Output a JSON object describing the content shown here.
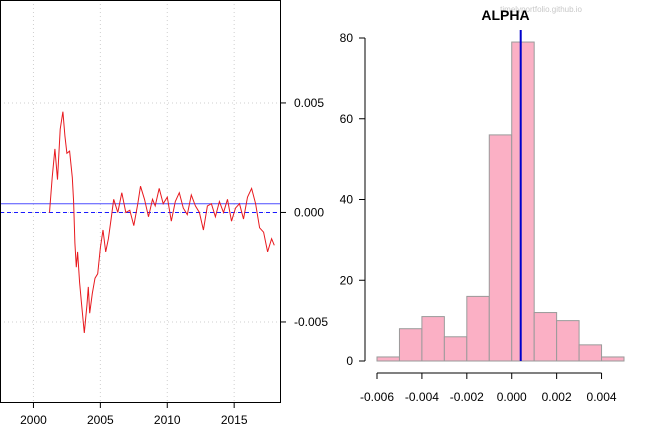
{
  "watermark": "timelyportfolio.github.io",
  "chart_data": [
    {
      "type": "line",
      "title": "",
      "xlabel": "",
      "ylabel": "",
      "xlim": [
        1997.5,
        2018.5
      ],
      "ylim": [
        -0.0087,
        0.0097
      ],
      "x_ticks": [
        2000,
        2005,
        2010,
        2015
      ],
      "x_tick_labels": [
        "2000",
        "2005",
        "2010",
        "2015"
      ],
      "y_ticks": [
        0.005,
        0.0,
        -0.005
      ],
      "y_tick_labels": [
        "0.005",
        "0.000",
        "-0.005"
      ],
      "grid": true,
      "reference_lines": [
        {
          "style": "solid",
          "value": 0.0004,
          "color": "#4d4dff"
        },
        {
          "style": "dashed",
          "value": 0.0,
          "color": "#1a1aff"
        }
      ],
      "series": [
        {
          "color": "#e8191e",
          "x": [
            2001.2,
            2001.4,
            2001.6,
            2001.8,
            2002.0,
            2002.2,
            2002.35,
            2002.5,
            2002.7,
            2002.9,
            2003.0,
            2003.1,
            2003.2,
            2003.3,
            2003.45,
            2003.6,
            2003.8,
            2004.0,
            2004.1,
            2004.2,
            2004.4,
            2004.6,
            2004.8,
            2005.0,
            2005.2,
            2005.4,
            2005.6,
            2005.8,
            2006.0,
            2006.3,
            2006.6,
            2006.9,
            2007.2,
            2007.5,
            2007.8,
            2008.0,
            2008.3,
            2008.6,
            2008.9,
            2009.1,
            2009.4,
            2009.7,
            2010.0,
            2010.3,
            2010.6,
            2010.9,
            2011.2,
            2011.5,
            2011.8,
            2012.1,
            2012.4,
            2012.7,
            2013.0,
            2013.3,
            2013.6,
            2013.9,
            2014.2,
            2014.5,
            2014.8,
            2015.1,
            2015.4,
            2015.7,
            2016.0,
            2016.3,
            2016.6,
            2016.9,
            2017.2,
            2017.5,
            2017.8,
            2018.0
          ],
          "values": [
            0.0,
            0.0016,
            0.0029,
            0.0015,
            0.0038,
            0.0046,
            0.0035,
            0.0027,
            0.0028,
            0.0016,
            0.0005,
            -0.0014,
            -0.0025,
            -0.0018,
            -0.0032,
            -0.0042,
            -0.0055,
            -0.0042,
            -0.0034,
            -0.0046,
            -0.0037,
            -0.003,
            -0.0028,
            -0.0016,
            -0.0008,
            -0.0018,
            -0.0012,
            -0.0003,
            0.0006,
            0.0,
            0.0009,
            0.0,
            0.0001,
            -0.0006,
            0.0004,
            0.0012,
            0.0006,
            -0.0002,
            0.0006,
            0.0003,
            0.0011,
            0.0004,
            0.0007,
            -0.0004,
            0.0005,
            0.0009,
            0.0002,
            -0.0001,
            0.0008,
            0.0003,
            0.0,
            -0.0008,
            0.0003,
            0.0004,
            -0.0002,
            0.0005,
            0.0,
            0.0006,
            -0.0004,
            0.0002,
            0.0004,
            -0.0003,
            0.0007,
            0.0011,
            0.0004,
            -0.0007,
            -0.0009,
            -0.0018,
            -0.0012,
            -0.0015
          ]
        }
      ]
    },
    {
      "type": "bar",
      "title": "ALPHA",
      "xlabel": "",
      "ylabel": "",
      "xlim": [
        -0.006,
        0.005
      ],
      "ylim": [
        0,
        82
      ],
      "x_ticks": [
        -0.006,
        -0.004,
        -0.002,
        0.0,
        0.002,
        0.004
      ],
      "x_tick_labels": [
        "-0.006",
        "-0.004",
        "-0.002",
        "0.000",
        "0.002",
        "0.004"
      ],
      "y_ticks": [
        0,
        20,
        40,
        60,
        80
      ],
      "y_tick_labels": [
        "0",
        "20",
        "40",
        "60",
        "80"
      ],
      "bar_color": "#fbb0c5",
      "bar_border": "#9a9a9a",
      "mean_line": {
        "value": 0.0004,
        "color": "#0000cc"
      },
      "bins": [
        {
          "start": -0.006,
          "end": -0.005,
          "count": 1
        },
        {
          "start": -0.005,
          "end": -0.004,
          "count": 8
        },
        {
          "start": -0.004,
          "end": -0.003,
          "count": 11
        },
        {
          "start": -0.003,
          "end": -0.002,
          "count": 6
        },
        {
          "start": -0.002,
          "end": -0.001,
          "count": 16
        },
        {
          "start": -0.001,
          "end": 0.0,
          "count": 56
        },
        {
          "start": 0.0,
          "end": 0.001,
          "count": 79
        },
        {
          "start": 0.001,
          "end": 0.002,
          "count": 12
        },
        {
          "start": 0.002,
          "end": 0.003,
          "count": 10
        },
        {
          "start": 0.003,
          "end": 0.004,
          "count": 4
        },
        {
          "start": 0.004,
          "end": 0.005,
          "count": 1
        }
      ]
    }
  ]
}
